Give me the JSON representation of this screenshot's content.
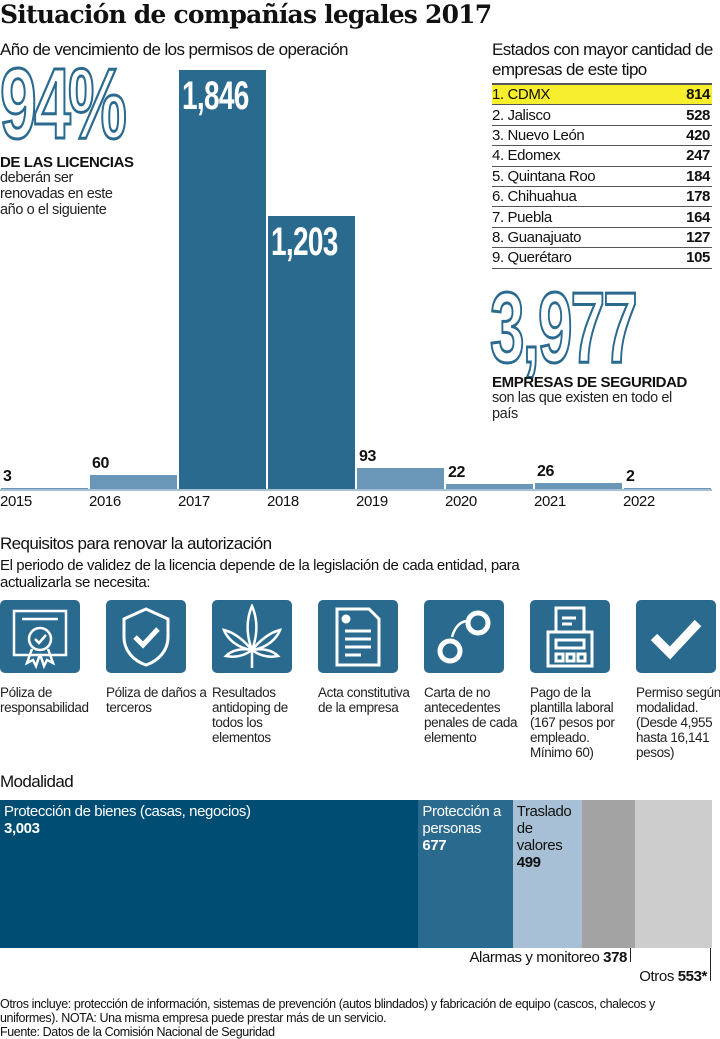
{
  "title": "Situación de compañías legales 2017",
  "expiry": {
    "heading": "Año de vencimiento de los permisos de operación",
    "big_pct": "94%",
    "big_caption": "DE LAS LICENCIAS",
    "big_text": "deberán ser renovadas en este año o el siguiente"
  },
  "chart_data": {
    "type": "bar",
    "title": "Año de vencimiento de los permisos de operación",
    "categories": [
      "2015",
      "2016",
      "2017",
      "2018",
      "2019",
      "2020",
      "2021",
      "2022"
    ],
    "values": [
      3,
      60,
      1846,
      1203,
      93,
      22,
      26,
      2
    ],
    "labels": [
      "3",
      "60",
      "1,846",
      "1,203",
      "93",
      "22",
      "26",
      "2"
    ],
    "ylim": [
      0,
      1846
    ],
    "colors": {
      "highlight": "#2b6a8f",
      "normal": "#6a96b8"
    }
  },
  "states": {
    "heading": "Estados con mayor cantidad de empresas de este tipo",
    "rows": [
      {
        "name": "1.  CDMX",
        "value": "814"
      },
      {
        "name": "2.  Jalisco",
        "value": "528"
      },
      {
        "name": "3.  Nuevo León",
        "value": "420"
      },
      {
        "name": "4.  Edomex",
        "value": "247"
      },
      {
        "name": "5.  Quintana Roo",
        "value": "184"
      },
      {
        "name": "6.  Chihuahua",
        "value": "178"
      },
      {
        "name": "7.  Puebla",
        "value": "164"
      },
      {
        "name": "8.  Guanajuato",
        "value": "127"
      },
      {
        "name": "9.  Querétaro",
        "value": "105"
      }
    ],
    "highlight_color": "#f7ee2e"
  },
  "total": {
    "value": "3,977",
    "caption": "EMPRESAS DE SEGURIDAD",
    "text": "son las que existen en todo el país"
  },
  "requirements": {
    "heading": "Requisitos para renovar  la autorización",
    "intro": "El periodo de validez de la licencia depende de la legislación de cada entidad, para actualizarla se necesita:",
    "items": [
      {
        "icon": "certificate-icon",
        "label": "Póliza de responsabilidad"
      },
      {
        "icon": "shield-check-icon",
        "label": "Póliza de daños a terceros"
      },
      {
        "icon": "cannabis-leaf-icon",
        "label": "Resultados antidoping de todos los elementos"
      },
      {
        "icon": "document-icon",
        "label": "Acta constitutiva de la empresa"
      },
      {
        "icon": "handcuffs-icon",
        "label": "Carta de no antecedentes penales de cada elemento"
      },
      {
        "icon": "cash-register-icon",
        "label": "Pago de la plantilla laboral (167 pesos por empleado. Mínimo 60)"
      },
      {
        "icon": "checkmark-icon",
        "label": "Permiso según la modalidad. (Desde 4,955 hasta 16,141 pesos)"
      }
    ]
  },
  "modalidad": {
    "heading": "Modalidad",
    "segments": [
      {
        "label": "Protección de bienes (casas, negocios)",
        "value": "3,003",
        "color": "#004d73"
      },
      {
        "label": "Protección a personas",
        "value": "677",
        "color": "#2b6a8f"
      },
      {
        "label": "Traslado de valores",
        "value": "499",
        "color": "#a7c0d6"
      },
      {
        "label": "Alarmas y monitoreo",
        "value": "378",
        "color": "#a3a3a3"
      },
      {
        "label": "Otros",
        "value": "553*",
        "color": "#cdcdcd"
      }
    ]
  },
  "footnote": "Otros incluye: protección de información, sistemas de prevención (autos blindados) y fabricación de equipo (cascos, chalecos y uniformes). NOTA: Una misma empresa puede prestar más de un servicio.",
  "source": "Fuente: Datos de la Comisión Nacional de Seguridad"
}
